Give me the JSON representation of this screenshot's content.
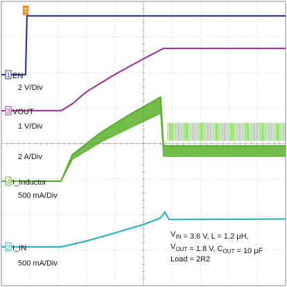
{
  "chart_data": {
    "type": "line",
    "title": "",
    "xlabel": "",
    "ylabel": "",
    "grid": true,
    "trigger_marker": "T",
    "channels": [
      {
        "marker": "1",
        "name": "EN",
        "scale": "2 V/Div",
        "color": "#2b3a9e",
        "marker_color": "#2b3a9e",
        "points": [
          [
            0.0,
            0.0
          ],
          [
            0.085,
            0.0
          ],
          [
            0.09,
            2.1
          ],
          [
            1.0,
            2.1
          ]
        ]
      },
      {
        "marker": "3",
        "name": "VOUT",
        "scale": "1 V/Div",
        "color": "#a23c96",
        "marker_color": "#a23c96",
        "points": [
          [
            0.0,
            0.0
          ],
          [
            0.21,
            0.0
          ],
          [
            0.25,
            0.2
          ],
          [
            0.3,
            0.55
          ],
          [
            0.4,
            1.05
          ],
          [
            0.5,
            1.5
          ],
          [
            0.57,
            1.8
          ],
          [
            1.0,
            1.8
          ]
        ]
      },
      {
        "marker": "4",
        "name": "I_Inductor",
        "scale": "500 mA/Div",
        "color": "#58b02c",
        "marker_color": "#58b02c",
        "ripple_scale": "2 A/Div",
        "points": [
          [
            0.0,
            0.0
          ],
          [
            0.21,
            0.0
          ],
          [
            0.25,
            0.3
          ],
          [
            0.35,
            0.55
          ],
          [
            0.45,
            0.75
          ],
          [
            0.56,
            0.95
          ],
          [
            0.57,
            0.4
          ],
          [
            1.0,
            0.4
          ]
        ],
        "ripple": [
          [
            0.21,
            0.0
          ],
          [
            0.25,
            0.25
          ],
          [
            0.35,
            0.5
          ],
          [
            0.45,
            0.7
          ],
          [
            0.56,
            0.85
          ],
          [
            0.57,
            0.55
          ],
          [
            1.0,
            0.55
          ]
        ]
      },
      {
        "marker": "2",
        "name": "I_IN",
        "scale": "500 mA/Div",
        "color": "#2fb1bd",
        "marker_color": "#2fb1bd",
        "points": [
          [
            0.0,
            0.0
          ],
          [
            0.21,
            0.0
          ],
          [
            0.3,
            0.12
          ],
          [
            0.4,
            0.28
          ],
          [
            0.5,
            0.45
          ],
          [
            0.56,
            0.58
          ],
          [
            0.575,
            0.7
          ],
          [
            0.59,
            0.55
          ],
          [
            1.0,
            0.56
          ]
        ]
      }
    ],
    "annotation": {
      "line1": [
        {
          "text": "V",
          "sub": "IN"
        },
        {
          "text": " = 3.6 V,    L = 1.2 μH,"
        }
      ],
      "line2": [
        {
          "text": "V",
          "sub": "OUT"
        },
        {
          "text": " = 1.8 V, C"
        },
        {
          "text": "",
          "sub": "OUT"
        },
        {
          "text": " = 10 μF"
        }
      ],
      "line3": [
        {
          "text": "Load = 2R2"
        }
      ]
    }
  }
}
